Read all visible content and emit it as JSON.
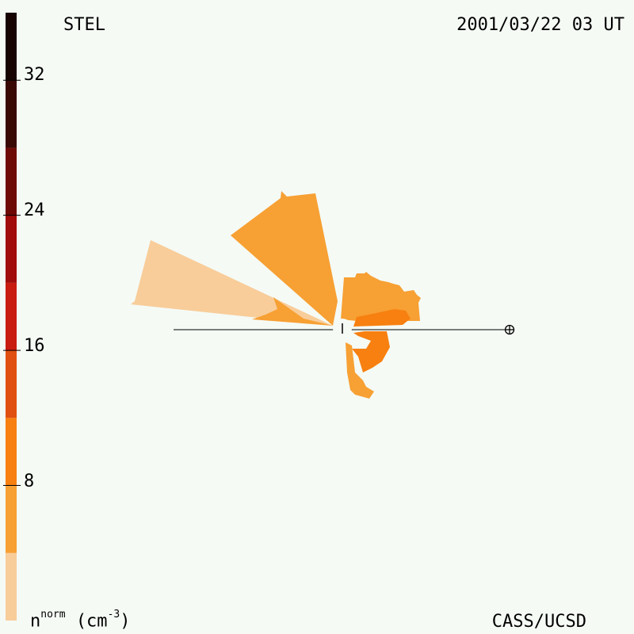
{
  "header": {
    "observatory": "STEL",
    "timestamp": "2001/03/22 03 UT"
  },
  "footer": {
    "credit": "CASS/UCSD"
  },
  "colorbar": {
    "quantity_base": "n",
    "quantity_sup": "norm",
    "unit_prefix": "(cm",
    "unit_sup": "-3",
    "unit_suffix": ")",
    "tick_labels": [
      "32",
      "24",
      "16",
      "8"
    ],
    "tick_values": [
      32,
      24,
      16,
      8
    ],
    "range": [
      0,
      36
    ],
    "segments": [
      {
        "from": 0,
        "to": 4,
        "color": "#f8cd9a"
      },
      {
        "from": 4,
        "to": 8,
        "color": "#f7a033"
      },
      {
        "from": 8,
        "to": 12,
        "color": "#f78010"
      },
      {
        "from": 12,
        "to": 16,
        "color": "#e05010"
      },
      {
        "from": 16,
        "to": 20,
        "color": "#c81c10"
      },
      {
        "from": 20,
        "to": 24,
        "color": "#a00d0a"
      },
      {
        "from": 24,
        "to": 28,
        "color": "#6e0a06"
      },
      {
        "from": 28,
        "to": 32,
        "color": "#3a0804"
      },
      {
        "from": 32,
        "to": 36,
        "color": "#170402"
      }
    ]
  },
  "map": {
    "sun_symbol": "sun-tick",
    "earth_symbol": "earth-symbol",
    "colors": {
      "pale": "#f8cd9a",
      "light": "#f7a033",
      "mid": "#f78010",
      "line": "#000000",
      "background": "#f5faf5"
    }
  }
}
